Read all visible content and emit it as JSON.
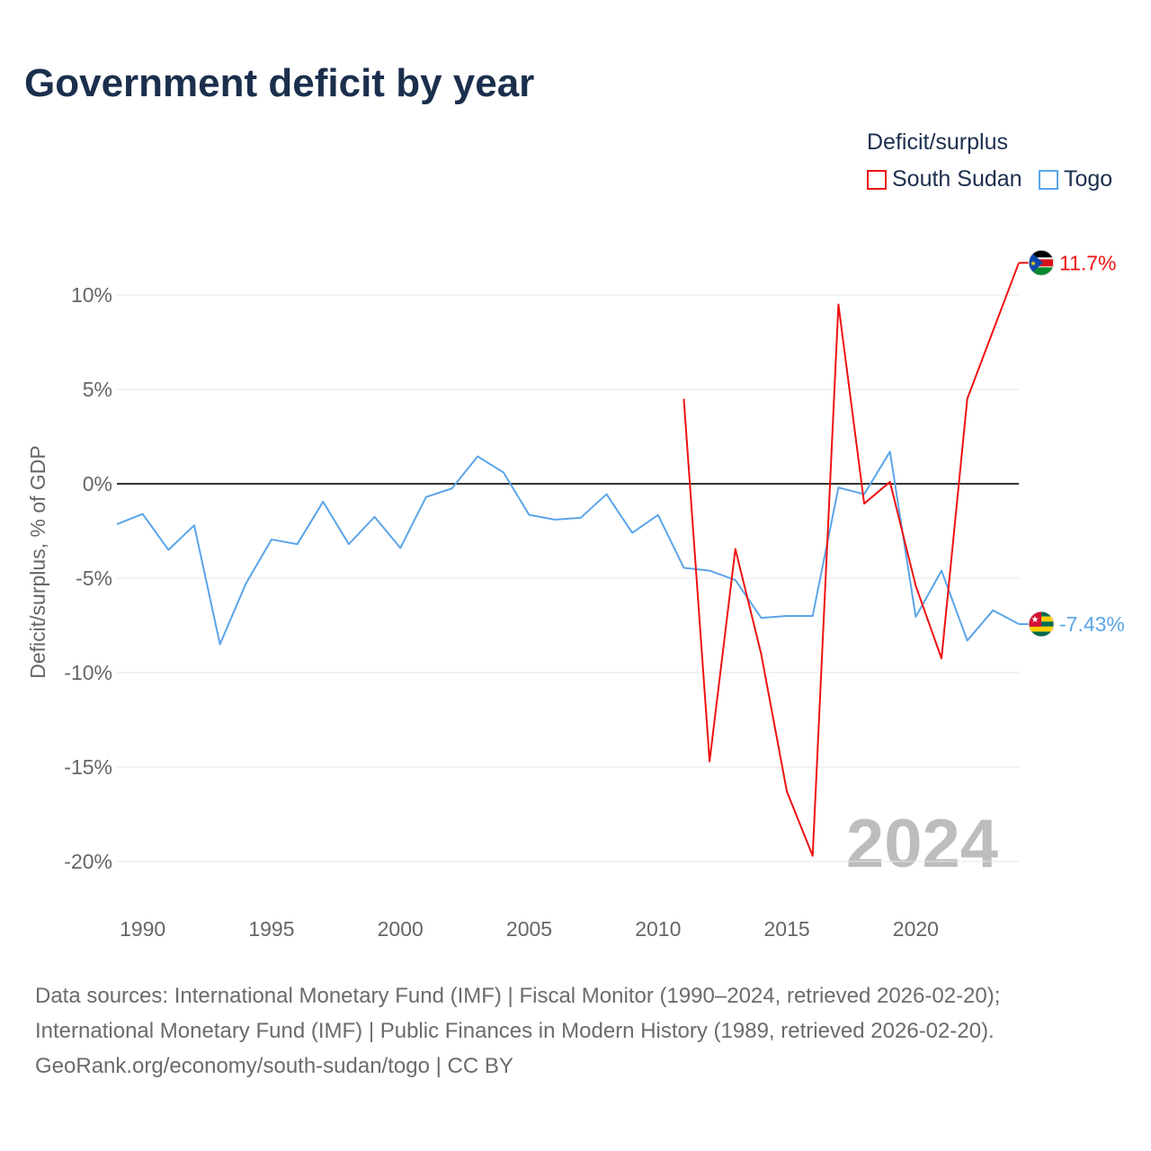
{
  "title": "Government deficit by year",
  "legend": {
    "title": "Deficit/surplus",
    "items": [
      {
        "label": "South Sudan",
        "color": "#ee1111"
      },
      {
        "label": "Togo",
        "color": "#5aa5e8"
      }
    ]
  },
  "source_lines": [
    "Data sources: International Monetary Fund (IMF) | Fiscal Monitor (1990–2024, retrieved 2026-02-20);",
    "International Monetary Fund (IMF) | Public Finances in Modern History (1989, retrieved 2026-02-20).",
    "GeoRank.org/economy/south-sudan/togo | CC BY"
  ],
  "chart_data": {
    "type": "line",
    "title": "Government deficit by year",
    "xlabel": "",
    "ylabel": "Deficit/surplus, % of GDP",
    "xlim": [
      1989,
      2024
    ],
    "ylim": [
      -22,
      12
    ],
    "x_ticks": [
      1990,
      1995,
      2000,
      2005,
      2010,
      2015,
      2020
    ],
    "y_ticks": [
      {
        "v": 10,
        "label": "10%"
      },
      {
        "v": 5,
        "label": "5%"
      },
      {
        "v": 0,
        "label": "0%"
      },
      {
        "v": -5,
        "label": "-5%"
      },
      {
        "v": -10,
        "label": "-10%"
      },
      {
        "v": -15,
        "label": "-15%"
      },
      {
        "v": -20,
        "label": "-20%"
      }
    ],
    "year_watermark": "2024",
    "series": [
      {
        "name": "South Sudan",
        "color": "#ee1111",
        "end_label": "11.7%",
        "x": [
          2011,
          2012,
          2013,
          2014,
          2015,
          2016,
          2017,
          2018,
          2019,
          2020,
          2021,
          2022,
          2023,
          2024
        ],
        "values": [
          4.5,
          -14.7,
          -3.45,
          -9.0,
          -16.3,
          -19.7,
          9.5,
          -1.05,
          0.1,
          -5.4,
          -9.25,
          4.5,
          8.1,
          11.7
        ]
      },
      {
        "name": "Togo",
        "color": "#5aa5e8",
        "end_label": "-7.43%",
        "x": [
          1989,
          1990,
          1991,
          1992,
          1993,
          1994,
          1995,
          1996,
          1997,
          1998,
          1999,
          2000,
          2001,
          2002,
          2003,
          2004,
          2005,
          2006,
          2007,
          2008,
          2009,
          2010,
          2011,
          2012,
          2013,
          2014,
          2015,
          2016,
          2017,
          2018,
          2019,
          2020,
          2021,
          2022,
          2023,
          2024
        ],
        "values": [
          -2.14,
          -1.6,
          -3.5,
          -2.2,
          -8.5,
          -5.3,
          -2.95,
          -3.2,
          -0.95,
          -3.2,
          -1.75,
          -3.4,
          -0.7,
          -0.25,
          1.45,
          0.6,
          -1.65,
          -1.9,
          -1.8,
          -0.55,
          -2.6,
          -1.65,
          -4.45,
          -4.6,
          -5.1,
          -7.1,
          -7.0,
          -7.0,
          -0.2,
          -0.55,
          1.7,
          -7.05,
          -4.6,
          -8.3,
          -6.7,
          -7.43
        ]
      }
    ]
  }
}
